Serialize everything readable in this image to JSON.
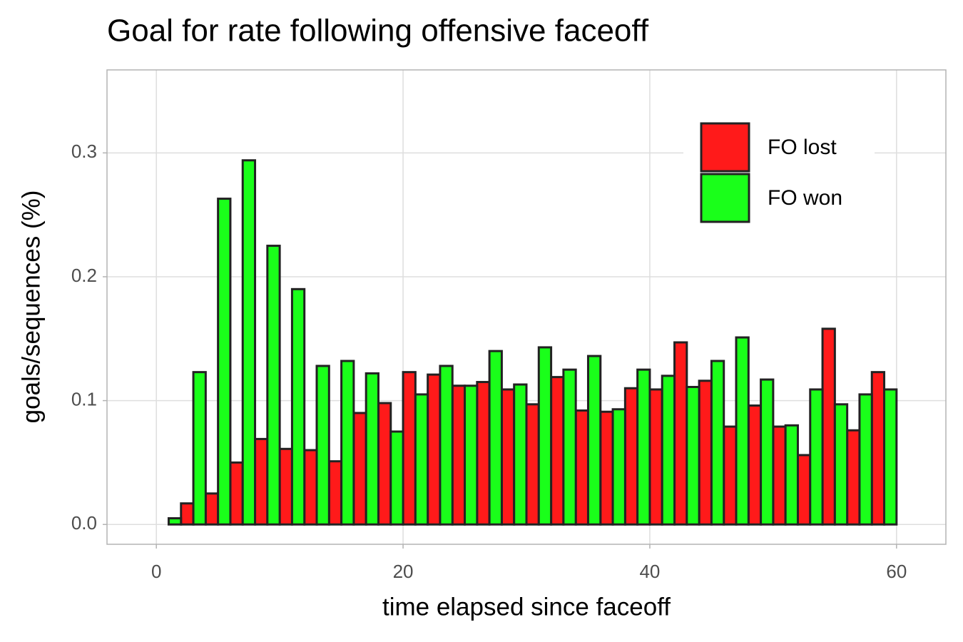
{
  "chart_data": {
    "type": "bar",
    "title": "Goal for rate following offensive faceoff",
    "x_label": "time elapsed since faceoff",
    "y_label": "goals/sequences (%)",
    "x": [
      1,
      3,
      5,
      7,
      9,
      11,
      13,
      15,
      17,
      19,
      21,
      23,
      25,
      27,
      29,
      31,
      33,
      35,
      37,
      39,
      41,
      43,
      45,
      47,
      49,
      51,
      53,
      55,
      57,
      59
    ],
    "series": [
      {
        "name": "FO lost",
        "color": "#ff1a1a",
        "values": [
          0,
          0.017,
          0.025,
          0.05,
          0.069,
          0.061,
          0.06,
          0.051,
          0.09,
          0.098,
          0.123,
          0.121,
          0.112,
          0.115,
          0.109,
          0.097,
          0.119,
          0.092,
          0.091,
          0.11,
          0.109,
          0.147,
          0.116,
          0.079,
          0.096,
          0.079,
          0.056,
          0.158,
          0.076,
          0.123
        ]
      },
      {
        "name": "FO won",
        "color": "#1aff1a",
        "values": [
          0.005,
          0.123,
          0.263,
          0.294,
          0.225,
          0.19,
          0.128,
          0.132,
          0.122,
          0.075,
          0.105,
          0.128,
          0.112,
          0.14,
          0.113,
          0.143,
          0.125,
          0.136,
          0.093,
          0.125,
          0.12,
          0.111,
          0.132,
          0.151,
          0.117,
          0.08,
          0.109,
          0.097,
          0.105,
          0.109
        ]
      }
    ],
    "xlim": [
      -4,
      64
    ],
    "xticks": [
      0,
      20,
      40,
      60
    ],
    "ylim": [
      -0.016,
      0.367
    ],
    "yticks": [
      {
        "value": 0,
        "label": "0.0"
      },
      0.1,
      0.2,
      0.3
    ],
    "grid": true,
    "legend": "top-right"
  }
}
